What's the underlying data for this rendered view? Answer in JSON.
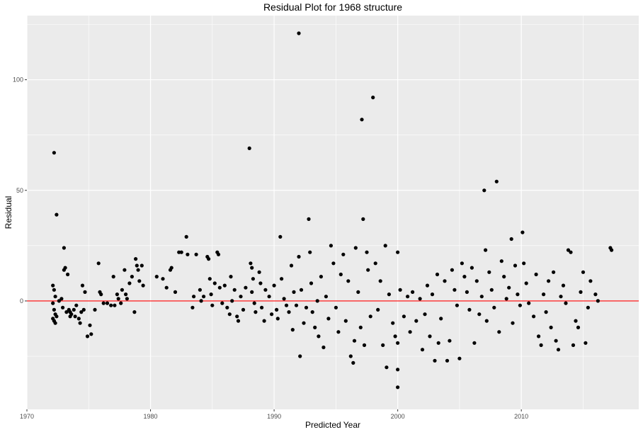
{
  "chart_data": {
    "type": "scatter",
    "title": "Residual Plot for 1968 structure",
    "xlabel": "Predicted Year",
    "ylabel": "Residual",
    "xlim": [
      1970,
      2019.5
    ],
    "ylim": [
      -49,
      129
    ],
    "x_ticks": [
      1970,
      1980,
      1990,
      2000,
      2010
    ],
    "y_ticks": [
      0,
      50,
      100
    ],
    "grid": true,
    "reference_line": {
      "y": 0,
      "color": "#ff0000"
    },
    "colors": {
      "panel": "#ebebeb",
      "grid_major": "#ffffff",
      "point": "#000000",
      "reference": "#ff0000"
    },
    "points": [
      [
        1972.2,
        67
      ],
      [
        1972.4,
        39
      ],
      [
        1972.1,
        7
      ],
      [
        1972.2,
        5
      ],
      [
        1972.3,
        2
      ],
      [
        1972.1,
        -1
      ],
      [
        1972.2,
        -4
      ],
      [
        1972.3,
        -6
      ],
      [
        1972.1,
        -8
      ],
      [
        1972.2,
        -9
      ],
      [
        1972.4,
        -7
      ],
      [
        1972.3,
        -10
      ],
      [
        1972.6,
        0
      ],
      [
        1972.8,
        1
      ],
      [
        1972.9,
        -3
      ],
      [
        1973.0,
        24
      ],
      [
        1973.0,
        14
      ],
      [
        1973.1,
        15
      ],
      [
        1973.3,
        12
      ],
      [
        1973.2,
        -5
      ],
      [
        1973.4,
        -4
      ],
      [
        1973.5,
        -5
      ],
      [
        1973.6,
        -6
      ],
      [
        1973.8,
        -4
      ],
      [
        1973.5,
        -7
      ],
      [
        1973.9,
        -7
      ],
      [
        1974.0,
        -2
      ],
      [
        1974.2,
        -8
      ],
      [
        1974.3,
        -10
      ],
      [
        1974.4,
        -5
      ],
      [
        1974.5,
        7
      ],
      [
        1974.7,
        4
      ],
      [
        1974.6,
        -4
      ],
      [
        1974.9,
        -16
      ],
      [
        1975.2,
        -15
      ],
      [
        1975.1,
        -11
      ],
      [
        1975.5,
        -4
      ],
      [
        1975.8,
        17
      ],
      [
        1975.9,
        4
      ],
      [
        1976.0,
        3
      ],
      [
        1976.2,
        -1
      ],
      [
        1976.5,
        -1
      ],
      [
        1976.8,
        -2
      ],
      [
        1977.0,
        11
      ],
      [
        1977.1,
        -2
      ],
      [
        1977.3,
        3
      ],
      [
        1977.4,
        1
      ],
      [
        1977.6,
        -1
      ],
      [
        1977.7,
        5
      ],
      [
        1977.9,
        14
      ],
      [
        1978.0,
        3
      ],
      [
        1978.1,
        1
      ],
      [
        1978.3,
        8
      ],
      [
        1978.5,
        11
      ],
      [
        1978.7,
        -5
      ],
      [
        1978.8,
        19
      ],
      [
        1978.9,
        16
      ],
      [
        1979.0,
        14
      ],
      [
        1979.1,
        9
      ],
      [
        1979.3,
        16
      ],
      [
        1979.4,
        7
      ],
      [
        1980.5,
        11
      ],
      [
        1981.0,
        10
      ],
      [
        1981.3,
        6
      ],
      [
        1981.6,
        14
      ],
      [
        1981.7,
        15
      ],
      [
        1982.0,
        4
      ],
      [
        1982.3,
        22
      ],
      [
        1982.5,
        22
      ],
      [
        1982.9,
        29
      ],
      [
        1983.0,
        21
      ],
      [
        1983.4,
        -3
      ],
      [
        1983.5,
        2
      ],
      [
        1983.7,
        21
      ],
      [
        1984.0,
        5
      ],
      [
        1984.1,
        0
      ],
      [
        1984.3,
        2
      ],
      [
        1984.6,
        20
      ],
      [
        1984.7,
        19
      ],
      [
        1984.8,
        10
      ],
      [
        1984.9,
        3
      ],
      [
        1985.0,
        -2
      ],
      [
        1985.2,
        8
      ],
      [
        1985.4,
        22
      ],
      [
        1985.5,
        21
      ],
      [
        1985.6,
        6
      ],
      [
        1985.8,
        -1
      ],
      [
        1986.0,
        7
      ],
      [
        1986.2,
        -3
      ],
      [
        1986.4,
        -6
      ],
      [
        1986.5,
        11
      ],
      [
        1986.6,
        0
      ],
      [
        1986.8,
        5
      ],
      [
        1987.0,
        -7
      ],
      [
        1987.1,
        -9
      ],
      [
        1987.3,
        2
      ],
      [
        1987.5,
        -4
      ],
      [
        1987.7,
        6
      ],
      [
        1988.0,
        69
      ],
      [
        1988.1,
        17
      ],
      [
        1988.2,
        15
      ],
      [
        1988.3,
        10
      ],
      [
        1988.2,
        4
      ],
      [
        1988.4,
        -1
      ],
      [
        1988.5,
        -5
      ],
      [
        1988.8,
        13
      ],
      [
        1988.9,
        8
      ],
      [
        1989.0,
        -3
      ],
      [
        1989.2,
        -9
      ],
      [
        1989.3,
        5
      ],
      [
        1989.6,
        2
      ],
      [
        1989.8,
        -6
      ],
      [
        1990.0,
        7
      ],
      [
        1990.2,
        -4
      ],
      [
        1990.3,
        -8
      ],
      [
        1990.5,
        29
      ],
      [
        1990.6,
        10
      ],
      [
        1990.8,
        1
      ],
      [
        1991.0,
        -2
      ],
      [
        1991.2,
        -5
      ],
      [
        1991.4,
        16
      ],
      [
        1991.5,
        -13
      ],
      [
        1991.6,
        4
      ],
      [
        1991.8,
        -2
      ],
      [
        1992.0,
        121
      ],
      [
        1992.0,
        20
      ],
      [
        1992.1,
        -25
      ],
      [
        1992.2,
        5
      ],
      [
        1992.4,
        -10
      ],
      [
        1992.6,
        -3
      ],
      [
        1992.8,
        37
      ],
      [
        1992.9,
        22
      ],
      [
        1993.0,
        8
      ],
      [
        1993.1,
        -5
      ],
      [
        1993.3,
        -12
      ],
      [
        1993.5,
        0
      ],
      [
        1993.6,
        -16
      ],
      [
        1993.8,
        11
      ],
      [
        1994.0,
        -21
      ],
      [
        1994.2,
        2
      ],
      [
        1994.4,
        -8
      ],
      [
        1994.6,
        25
      ],
      [
        1994.8,
        17
      ],
      [
        1995.0,
        -3
      ],
      [
        1995.2,
        -14
      ],
      [
        1995.4,
        12
      ],
      [
        1995.6,
        21
      ],
      [
        1995.8,
        -9
      ],
      [
        1996.0,
        9
      ],
      [
        1996.2,
        -25
      ],
      [
        1996.4,
        -28
      ],
      [
        1996.5,
        -18
      ],
      [
        1996.6,
        24
      ],
      [
        1996.8,
        4
      ],
      [
        1997.0,
        -12
      ],
      [
        1997.1,
        82
      ],
      [
        1997.2,
        37
      ],
      [
        1997.3,
        -20
      ],
      [
        1997.5,
        22
      ],
      [
        1997.6,
        14
      ],
      [
        1997.8,
        -7
      ],
      [
        1998.0,
        92
      ],
      [
        1998.2,
        17
      ],
      [
        1998.4,
        -4
      ],
      [
        1998.6,
        9
      ],
      [
        1998.8,
        -20
      ],
      [
        1999.0,
        25
      ],
      [
        1999.1,
        -30
      ],
      [
        1999.3,
        3
      ],
      [
        1999.6,
        -10
      ],
      [
        1999.8,
        -16
      ],
      [
        2000.0,
        22
      ],
      [
        2000.0,
        -19
      ],
      [
        2000.0,
        -31
      ],
      [
        2000.0,
        -39
      ],
      [
        2000.2,
        5
      ],
      [
        2000.5,
        -7
      ],
      [
        2000.8,
        2
      ],
      [
        2001.0,
        -14
      ],
      [
        2001.2,
        4
      ],
      [
        2001.5,
        -9
      ],
      [
        2001.8,
        1
      ],
      [
        2002.0,
        -22
      ],
      [
        2002.2,
        -6
      ],
      [
        2002.4,
        7
      ],
      [
        2002.6,
        -16
      ],
      [
        2002.8,
        3
      ],
      [
        2003.0,
        -27
      ],
      [
        2003.2,
        12
      ],
      [
        2003.3,
        -19
      ],
      [
        2003.5,
        -8
      ],
      [
        2003.8,
        9
      ],
      [
        2004.0,
        -27
      ],
      [
        2004.2,
        -18
      ],
      [
        2004.4,
        14
      ],
      [
        2004.6,
        5
      ],
      [
        2004.8,
        -2
      ],
      [
        2005.0,
        -26
      ],
      [
        2005.2,
        17
      ],
      [
        2005.4,
        11
      ],
      [
        2005.6,
        4
      ],
      [
        2005.8,
        -4
      ],
      [
        2006.0,
        15
      ],
      [
        2006.2,
        -19
      ],
      [
        2006.4,
        9
      ],
      [
        2006.6,
        -6
      ],
      [
        2006.8,
        2
      ],
      [
        2007.0,
        50
      ],
      [
        2007.1,
        23
      ],
      [
        2007.2,
        -9
      ],
      [
        2007.4,
        13
      ],
      [
        2007.6,
        5
      ],
      [
        2007.8,
        -3
      ],
      [
        2008.0,
        54
      ],
      [
        2008.2,
        -14
      ],
      [
        2008.4,
        18
      ],
      [
        2008.6,
        11
      ],
      [
        2008.8,
        1
      ],
      [
        2009.0,
        6
      ],
      [
        2009.2,
        28
      ],
      [
        2009.3,
        -10
      ],
      [
        2009.5,
        16
      ],
      [
        2009.7,
        3
      ],
      [
        2009.9,
        -2
      ],
      [
        2010.1,
        31
      ],
      [
        2010.2,
        17
      ],
      [
        2010.4,
        8
      ],
      [
        2010.6,
        -1
      ],
      [
        2011.0,
        -7
      ],
      [
        2011.2,
        12
      ],
      [
        2011.4,
        -16
      ],
      [
        2011.6,
        -20
      ],
      [
        2011.8,
        3
      ],
      [
        2012.0,
        -5
      ],
      [
        2012.2,
        9
      ],
      [
        2012.4,
        -12
      ],
      [
        2012.6,
        13
      ],
      [
        2012.8,
        -18
      ],
      [
        2013.0,
        -22
      ],
      [
        2013.2,
        2
      ],
      [
        2013.4,
        7
      ],
      [
        2013.6,
        -1
      ],
      [
        2013.8,
        23
      ],
      [
        2014.0,
        22
      ],
      [
        2014.2,
        -20
      ],
      [
        2014.4,
        -9
      ],
      [
        2014.6,
        -12
      ],
      [
        2014.8,
        4
      ],
      [
        2015.0,
        13
      ],
      [
        2015.2,
        -19
      ],
      [
        2015.4,
        -3
      ],
      [
        2015.6,
        9
      ],
      [
        2016.0,
        3
      ],
      [
        2016.2,
        0
      ],
      [
        2017.2,
        24
      ],
      [
        2017.3,
        23
      ]
    ]
  }
}
